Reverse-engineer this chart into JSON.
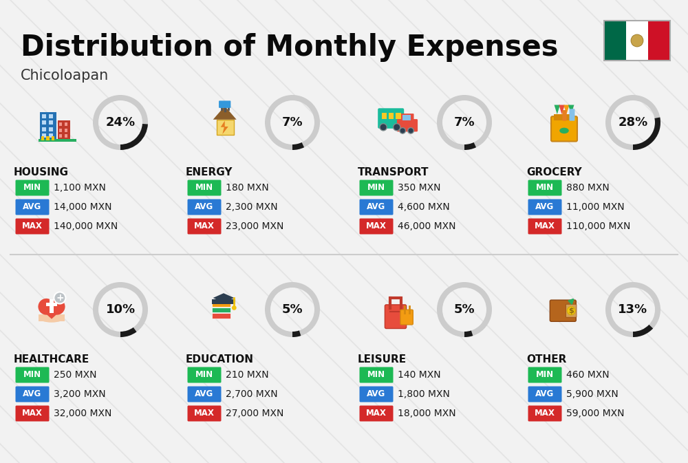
{
  "title": "Distribution of Monthly Expenses",
  "subtitle": "Chicoloapan",
  "background_color": "#f2f2f2",
  "categories": [
    {
      "name": "HOUSING",
      "pct": 24,
      "min": "1,100 MXN",
      "avg": "14,000 MXN",
      "max": "140,000 MXN",
      "icon": "housing",
      "row": 0,
      "col": 0
    },
    {
      "name": "ENERGY",
      "pct": 7,
      "min": "180 MXN",
      "avg": "2,300 MXN",
      "max": "23,000 MXN",
      "icon": "energy",
      "row": 0,
      "col": 1
    },
    {
      "name": "TRANSPORT",
      "pct": 7,
      "min": "350 MXN",
      "avg": "4,600 MXN",
      "max": "46,000 MXN",
      "icon": "transport",
      "row": 0,
      "col": 2
    },
    {
      "name": "GROCERY",
      "pct": 28,
      "min": "880 MXN",
      "avg": "11,000 MXN",
      "max": "110,000 MXN",
      "icon": "grocery",
      "row": 0,
      "col": 3
    },
    {
      "name": "HEALTHCARE",
      "pct": 10,
      "min": "250 MXN",
      "avg": "3,200 MXN",
      "max": "32,000 MXN",
      "icon": "healthcare",
      "row": 1,
      "col": 0
    },
    {
      "name": "EDUCATION",
      "pct": 5,
      "min": "210 MXN",
      "avg": "2,700 MXN",
      "max": "27,000 MXN",
      "icon": "education",
      "row": 1,
      "col": 1
    },
    {
      "name": "LEISURE",
      "pct": 5,
      "min": "140 MXN",
      "avg": "1,800 MXN",
      "max": "18,000 MXN",
      "icon": "leisure",
      "row": 1,
      "col": 2
    },
    {
      "name": "OTHER",
      "pct": 13,
      "min": "460 MXN",
      "avg": "5,900 MXN",
      "max": "59,000 MXN",
      "icon": "other",
      "row": 1,
      "col": 3
    }
  ],
  "min_color": "#1db954",
  "avg_color": "#2979d4",
  "max_color": "#d42929",
  "label_text_color": "#ffffff",
  "value_text_color": "#1a1a1a",
  "category_text_color": "#111111",
  "donut_active_color": "#1a1a1a",
  "donut_inactive_color": "#cccccc",
  "flag_colors": [
    "#006847",
    "#ffffff",
    "#ce1126"
  ],
  "diagonal_line_color": "#dedede",
  "divider_color": "#cccccc"
}
